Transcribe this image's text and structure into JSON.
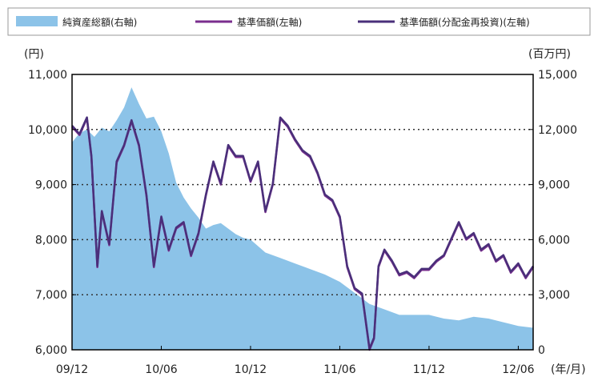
{
  "chart_data": {
    "type": "line",
    "title": "",
    "legend": {
      "placement": "top",
      "entries": [
        {
          "label": "純資産総額(右軸)",
          "kind": "area",
          "color": "#8cc3e8"
        },
        {
          "label": "基準価額(左軸)",
          "kind": "line",
          "color": "#7a2e8e"
        },
        {
          "label": "基準価額(分配金再投資)(左軸)",
          "kind": "line",
          "color": "#4a2f7a"
        }
      ]
    },
    "left_axis": {
      "unit": "(円)",
      "range": [
        6000,
        11000
      ],
      "ticks": [
        "6,000",
        "7,000",
        "8,000",
        "9,000",
        "10,000",
        "11,000"
      ],
      "tick_values": [
        6000,
        7000,
        8000,
        9000,
        10000,
        11000
      ]
    },
    "right_axis": {
      "unit": "(百万円)",
      "range": [
        0,
        15000
      ],
      "ticks": [
        "0",
        "3,000",
        "6,000",
        "9,000",
        "12,000",
        "15,000"
      ],
      "tick_values": [
        0,
        3000,
        6000,
        9000,
        12000,
        15000
      ]
    },
    "x_axis": {
      "unit": "(年/月)",
      "range": [
        0,
        31
      ],
      "ticks": [
        "09/12",
        "10/06",
        "10/12",
        "11/06",
        "11/12",
        "12/06"
      ],
      "tick_positions": [
        0,
        6,
        12,
        18,
        24,
        30
      ]
    },
    "grid": "horizontal dashed",
    "series": [
      {
        "name": "純資産総額(右軸)",
        "axis": "right",
        "type": "area",
        "color": "#8cc3e8",
        "x": [
          0,
          0.5,
          1,
          1.5,
          2,
          2.5,
          3,
          3.5,
          4,
          4.5,
          5,
          5.5,
          6,
          6.5,
          7,
          7.5,
          8,
          8.5,
          9,
          9.5,
          10,
          10.5,
          11,
          11.5,
          12,
          13,
          14,
          15,
          16,
          17,
          18,
          19,
          20,
          21,
          22,
          23,
          24,
          25,
          26,
          27,
          28,
          29,
          30,
          31
        ],
        "y": [
          11300,
          11800,
          12000,
          11600,
          12100,
          11900,
          12500,
          13200,
          14300,
          13400,
          12600,
          12700,
          11900,
          10700,
          9100,
          8300,
          7700,
          7200,
          6600,
          6800,
          6900,
          6600,
          6300,
          6100,
          6000,
          5300,
          5000,
          4700,
          4400,
          4100,
          3700,
          3100,
          2500,
          2200,
          1900,
          1900,
          1900,
          1700,
          1600,
          1800,
          1700,
          1500,
          1300,
          1200
        ]
      },
      {
        "name": "基準価額(左軸)",
        "axis": "left",
        "type": "line",
        "color": "#7a2e8e",
        "x": [
          0,
          0.5,
          1,
          1.3,
          1.7,
          2,
          2.5,
          3,
          3.5,
          4,
          4.5,
          5,
          5.5,
          6,
          6.5,
          7,
          7.5,
          8,
          8.5,
          9,
          9.5,
          10,
          10.5,
          11,
          11.5,
          12,
          12.5,
          13,
          13.5,
          14,
          14.5,
          15,
          15.5,
          16,
          16.5,
          17,
          17.5,
          18,
          18.5,
          19,
          19.5,
          20,
          20.3,
          20.6,
          21,
          21.5,
          22,
          22.5,
          23,
          23.5,
          24,
          24.5,
          25,
          25.5,
          26,
          26.5,
          27,
          27.5,
          28,
          28.5,
          29,
          29.5,
          30,
          30.5,
          31
        ],
        "y": [
          10050,
          9900,
          10200,
          9500,
          7500,
          8500,
          7900,
          9400,
          9700,
          10150,
          9700,
          8800,
          7500,
          8400,
          7800,
          8200,
          8300,
          7700,
          8100,
          8800,
          9400,
          9000,
          9700,
          9500,
          9500,
          9050,
          9400,
          8500,
          9000,
          10200,
          10050,
          9800,
          9600,
          9500,
          9200,
          8800,
          8700,
          8400,
          7500,
          7100,
          7000,
          6000,
          6200,
          7500,
          7800,
          7600,
          7350,
          7400,
          7300,
          7450,
          7450,
          7600,
          7700,
          8000,
          8300,
          8000,
          8100,
          7800,
          7900,
          7600,
          7700,
          7400,
          7550,
          7300,
          7500
        ]
      },
      {
        "name": "基準価額(分配金再投資)(左軸)",
        "axis": "left",
        "type": "line",
        "color": "#4a2f7a",
        "x": [
          0,
          0.5,
          1,
          1.3,
          1.7,
          2,
          2.5,
          3,
          3.5,
          4,
          4.5,
          5,
          5.5,
          6,
          6.5,
          7,
          7.5,
          8,
          8.5,
          9,
          9.5,
          10,
          10.5,
          11,
          11.5,
          12,
          12.5,
          13,
          13.5,
          14,
          14.5,
          15,
          15.5,
          16,
          16.5,
          17,
          17.5,
          18,
          18.5,
          19,
          19.5,
          20,
          20.3,
          20.6,
          21,
          21.5,
          22,
          22.5,
          23,
          23.5,
          24,
          24.5,
          25,
          25.5,
          26,
          26.5,
          27,
          27.5,
          28,
          28.5,
          29,
          29.5,
          30,
          30.5,
          31
        ],
        "y": [
          10070,
          9920,
          10220,
          9520,
          7520,
          8520,
          7920,
          9420,
          9720,
          10170,
          9720,
          8820,
          7520,
          8420,
          7820,
          8220,
          8320,
          7720,
          8120,
          8820,
          9420,
          9020,
          9720,
          9520,
          9520,
          9070,
          9420,
          8520,
          9020,
          10220,
          10070,
          9820,
          9620,
          9520,
          9220,
          8820,
          8720,
          8420,
          7520,
          7120,
          7020,
          6020,
          6220,
          7520,
          7820,
          7620,
          7370,
          7420,
          7320,
          7470,
          7470,
          7620,
          7720,
          8020,
          8320,
          8020,
          8120,
          7820,
          7920,
          7620,
          7720,
          7420,
          7570,
          7320,
          7520
        ]
      }
    ]
  }
}
